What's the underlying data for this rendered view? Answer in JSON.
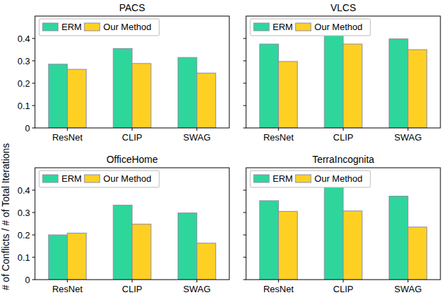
{
  "chart_data": [
    {
      "type": "bar",
      "title": "PACS",
      "categories": [
        "ResNet",
        "CLIP",
        "SWAG"
      ],
      "series": [
        {
          "name": "ERM",
          "color": "#2ed69c",
          "values": [
            0.285,
            0.355,
            0.315
          ]
        },
        {
          "name": "Our Method",
          "color": "#ffd024",
          "values": [
            0.262,
            0.288,
            0.245
          ]
        }
      ],
      "ylim": [
        0,
        0.5
      ],
      "yticks": [
        0,
        0.1,
        0.2,
        0.3,
        0.4
      ],
      "legend": "upper-left",
      "tick_labels": true
    },
    {
      "type": "bar",
      "title": "VLCS",
      "categories": [
        "ResNet",
        "CLIP",
        "SWAG"
      ],
      "series": [
        {
          "name": "ERM",
          "color": "#2ed69c",
          "values": [
            0.375,
            0.432,
            0.398
          ]
        },
        {
          "name": "Our Method",
          "color": "#ffd024",
          "values": [
            0.297,
            0.375,
            0.35
          ]
        }
      ],
      "ylim": [
        0,
        0.5
      ],
      "yticks": [
        0,
        0.1,
        0.2,
        0.3,
        0.4
      ],
      "legend": "upper-left",
      "tick_labels": "x"
    },
    {
      "type": "bar",
      "title": "OfficeHome",
      "ylabel": "# of Conflicts / # of Total Iterations",
      "categories": [
        "ResNet",
        "CLIP",
        "SWAG"
      ],
      "series": [
        {
          "name": "ERM",
          "color": "#2ed69c",
          "values": [
            0.2,
            0.333,
            0.298
          ]
        },
        {
          "name": "Our Method",
          "color": "#ffd024",
          "values": [
            0.208,
            0.248,
            0.163
          ]
        }
      ],
      "ylim": [
        0,
        0.5
      ],
      "yticks": [
        0,
        0.1,
        0.2,
        0.3,
        0.4
      ],
      "legend": "upper-left",
      "tick_labels": true
    },
    {
      "type": "bar",
      "title": "TerraIncognita",
      "categories": [
        "ResNet",
        "CLIP",
        "SWAG"
      ],
      "series": [
        {
          "name": "ERM",
          "color": "#2ed69c",
          "values": [
            0.353,
            0.425,
            0.373
          ]
        },
        {
          "name": "Our Method",
          "color": "#ffd024",
          "values": [
            0.305,
            0.307,
            0.235
          ]
        }
      ],
      "ylim": [
        0,
        0.5
      ],
      "yticks": [
        0,
        0.1,
        0.2,
        0.3,
        0.4
      ],
      "legend": "upper-left",
      "tick_labels": "x"
    }
  ]
}
